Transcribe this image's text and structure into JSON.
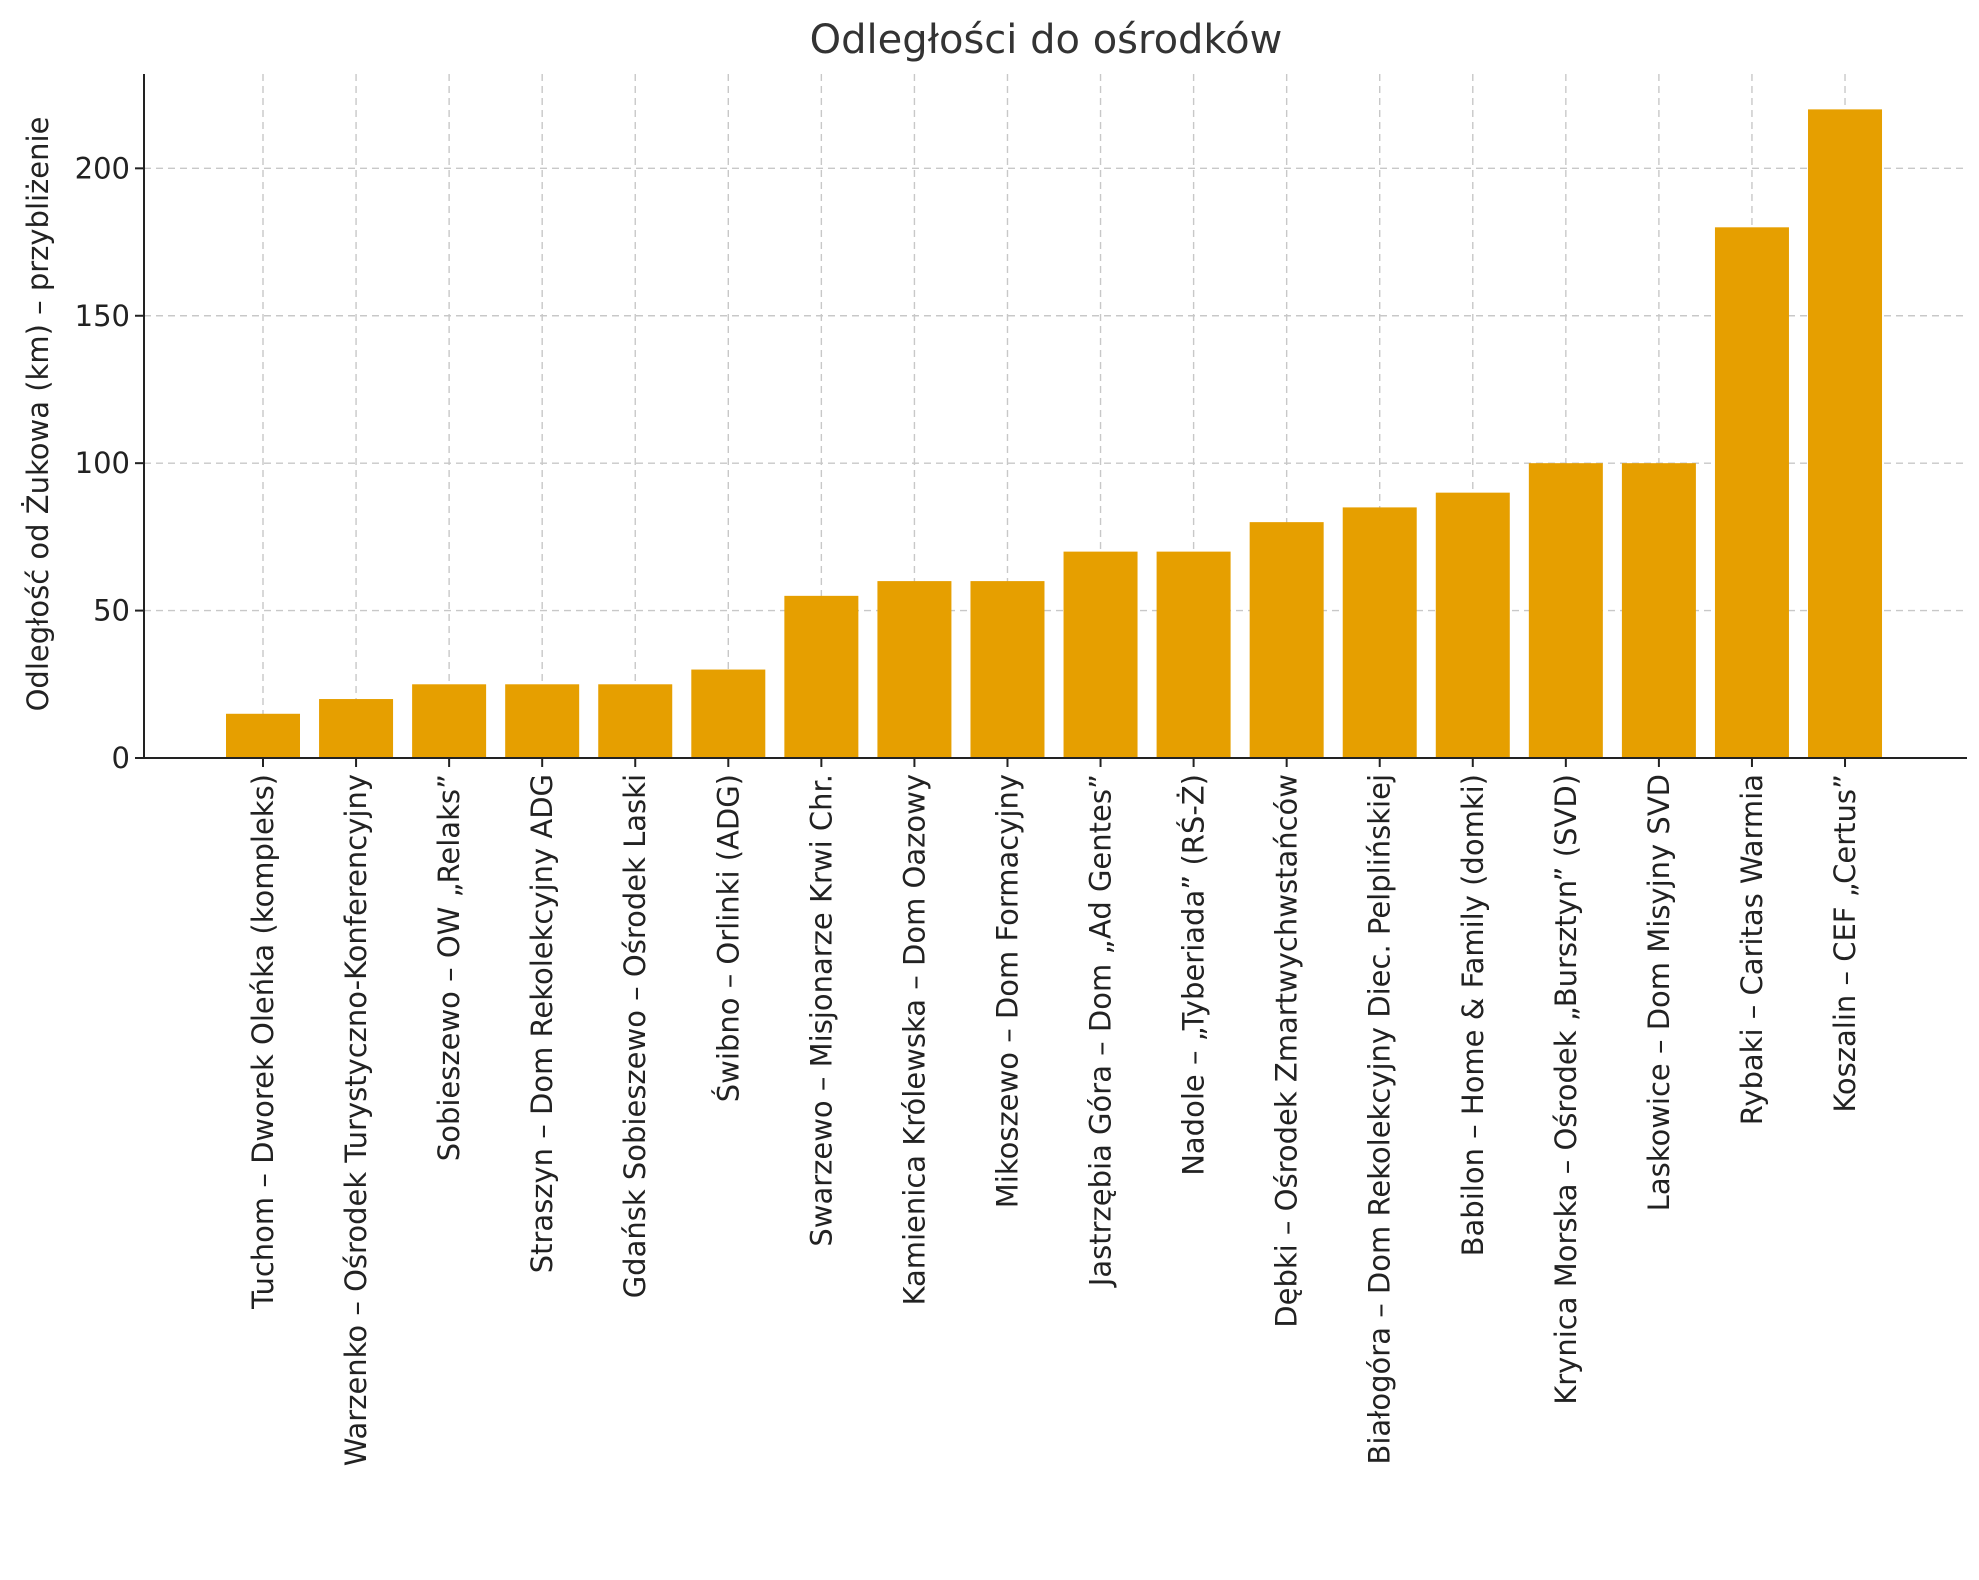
{
  "chart_data": {
    "type": "bar",
    "title": "Odległości do ośrodków",
    "xlabel": "",
    "ylabel": "Odległość od Żukowa (km) – przybliżenie",
    "ylim": [
      0,
      232
    ],
    "yticks": [
      0,
      50,
      100,
      150,
      200
    ],
    "grid": true,
    "bar_color": "#E69F00",
    "categories": [
      "Tuchom – Dworek Oleńka (kompleks)",
      "Warzenko – Ośrodek Turystyczno-Konferencyjny",
      "Sobieszewo – OW „Relaks”",
      "Straszyn – Dom Rekolekcyjny ADG",
      "Gdańsk Sobieszewo – Ośrodek Laski",
      "Świbno – Orlinki (ADG)",
      "Swarzewo – Misjonarze Krwi Chr.",
      "Kamienica Królewska – Dom Oazowy",
      "Mikoszewo – Dom Formacyjny",
      "Jastrzębia Góra – Dom „Ad Gentes”",
      "Nadole – „Tyberiada” (RŚ-Ż)",
      "Dębki – Ośrodek Zmartwychwstańców",
      "Białogóra – Dom Rekolekcyjny Diec. Pelplińskiej",
      "Babilon – Home & Family (domki)",
      "Krynica Morska – Ośrodek „Bursztyn” (SVD)",
      "Laskowice – Dom Misyjny SVD",
      "Rybaki – Caritas Warmia",
      "Koszalin – CEF „Certus”"
    ],
    "values": [
      15,
      20,
      25,
      25,
      25,
      30,
      55,
      60,
      60,
      70,
      70,
      80,
      85,
      90,
      100,
      100,
      180,
      220
    ]
  }
}
